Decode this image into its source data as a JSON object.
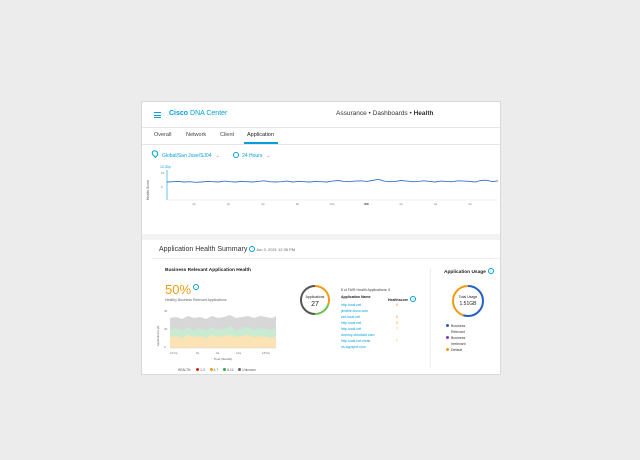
{
  "header": {
    "brand_bold": "Cisco",
    "brand_rest": "DNA Center",
    "breadcrumb_1": "Assurance",
    "breadcrumb_sep": "•",
    "breadcrumb_2": "Dashboards",
    "breadcrumb_3": "Health"
  },
  "tabs": [
    {
      "label": "Overall"
    },
    {
      "label": "Network"
    },
    {
      "label": "Client"
    },
    {
      "label": "Application",
      "active": true
    }
  ],
  "filters": {
    "location": "Global/San Jose/SJ04",
    "time_range": "24 Hours"
  },
  "health_trend": {
    "ylabel": "Health Score",
    "hover_time": "12:30p",
    "ymax_label": "10",
    "ymid_label": "5",
    "x_ticks": [
      "2p",
      "4p",
      "6p",
      "8p",
      "10p",
      "6/3",
      "2a",
      "4a",
      "6a"
    ],
    "values": [
      6.0,
      6.1,
      6.2,
      6.0,
      6.1,
      5.9,
      6.0,
      6.2,
      6.1,
      6.0,
      6.3,
      6.1,
      6.0,
      6.2,
      6.1,
      6.0,
      6.2,
      6.4,
      6.1,
      6.0,
      6.1,
      6.3,
      6.0,
      6.2,
      6.1,
      6.0,
      6.2,
      6.1,
      6.0,
      6.3,
      6.5,
      6.2,
      6.1,
      6.3,
      6.4,
      6.2,
      6.5,
      6.9,
      6.3,
      6.1,
      6.2,
      6.5,
      6.3,
      6.1,
      6.2,
      6.4,
      6.2,
      6.0,
      6.3,
      6.2,
      6.1,
      6.4,
      6.3,
      6.2,
      6.0,
      6.5,
      6.6,
      6.1,
      6.4
    ]
  },
  "summary": {
    "title": "Application Health Summary",
    "date": "Jun 3, 2021 12:35 PM"
  },
  "business_relevant": {
    "title": "Business Relevant Application Health",
    "percent": "50%",
    "subtitle": "Healthy Business Relevant Applications",
    "ylabel": "Applications (#)",
    "xlabel": "Time (Sec/Hr)",
    "y_ticks": [
      "40",
      "20",
      "0"
    ],
    "x_ticks": [
      "10:0p",
      "6p",
      "2a",
      "10a",
      "18:6a"
    ],
    "legend_title": "HEALTH:",
    "legend": [
      {
        "label": "1-3",
        "color": "#d0271d"
      },
      {
        "label": "4-7",
        "color": "#f29b11"
      },
      {
        "label": "8-10",
        "color": "#2fa84f"
      },
      {
        "label": "Unknown",
        "color": "#666666"
      }
    ]
  },
  "applications_donut": {
    "label": "Applications",
    "value": "27",
    "colors": [
      "#f29b11",
      "#6cc04a",
      "#555555"
    ],
    "fractions": [
      0.3,
      0.2,
      0.5
    ]
  },
  "poor_apps": {
    "title": "8 of FAIR Health Applications: 5",
    "col_app": "Application Name",
    "col_score": "Healthscore",
    "rows": [
      {
        "name": "http-local-net",
        "score": "6"
      },
      {
        "name": "jimellie.cisco.com",
        "score": ""
      },
      {
        "name": "net-local-net",
        "score": "6"
      },
      {
        "name": "http-local-net",
        "score": "6"
      },
      {
        "name": "http-local-net",
        "score": "7"
      },
      {
        "name": "dummy-cloudabt.com",
        "score": ""
      },
      {
        "name": "http-local-net-ntrab",
        "score": "7"
      },
      {
        "name": "ns.appspot.com",
        "score": ""
      }
    ]
  },
  "usage": {
    "title": "Application Usage",
    "label": "Total Usage",
    "value": "1.51GB",
    "ring_colors": [
      "#2560c4",
      "#f29b11"
    ],
    "fractions": [
      0.55,
      0.45
    ],
    "legend": [
      {
        "label": "Business",
        "color": "#2560c4"
      },
      {
        "label": "Relevant",
        "color": ""
      },
      {
        "label": "Business",
        "color": "#7b3fb0"
      },
      {
        "label": "Irrelevant",
        "color": ""
      },
      {
        "label": "Default",
        "color": "#f29b11"
      }
    ]
  },
  "colors": {
    "accent": "#049fd9",
    "trend_line": "#3a74c9"
  }
}
